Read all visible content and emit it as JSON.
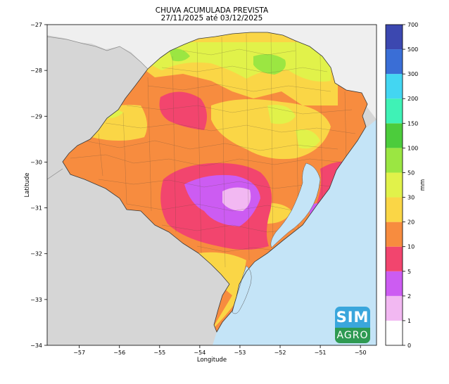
{
  "map": {
    "title_line1": "CHUVA ACUMULADA PREVISTA",
    "title_line2": "27/11/2025 até 03/12/2025",
    "x_axis_label": "Longitude",
    "y_axis_label": "Latitude",
    "x_range": [
      -57.8,
      -49.6
    ],
    "y_range": [
      -34,
      -27
    ],
    "x_ticks": [
      "−57",
      "−56",
      "−55",
      "−54",
      "−53",
      "−52",
      "−51",
      "−50"
    ],
    "y_ticks": [
      "−27",
      "−28",
      "−29",
      "−30",
      "−31",
      "−32",
      "−33",
      "−34"
    ],
    "colors": {
      "ocean": "#c4e4f7",
      "land_outside": "#d6d6d6",
      "land_north": "#efefef"
    }
  },
  "colorbar": {
    "unit": "mm",
    "levels": [
      "0",
      "1",
      "2",
      "5",
      "10",
      "20",
      "30",
      "50",
      "100",
      "150",
      "200",
      "300",
      "500",
      "700"
    ],
    "colors": [
      "#ffffff",
      "#f2b8f2",
      "#cc5cf2",
      "#f2456e",
      "#f78c3f",
      "#fad646",
      "#e1f24a",
      "#9be642",
      "#4ccc3c",
      "#3ff2b6",
      "#43d6f2",
      "#3a6ed6",
      "#3c48b0"
    ]
  },
  "logo": {
    "line1": "SIM",
    "line2": "AGRO"
  }
}
